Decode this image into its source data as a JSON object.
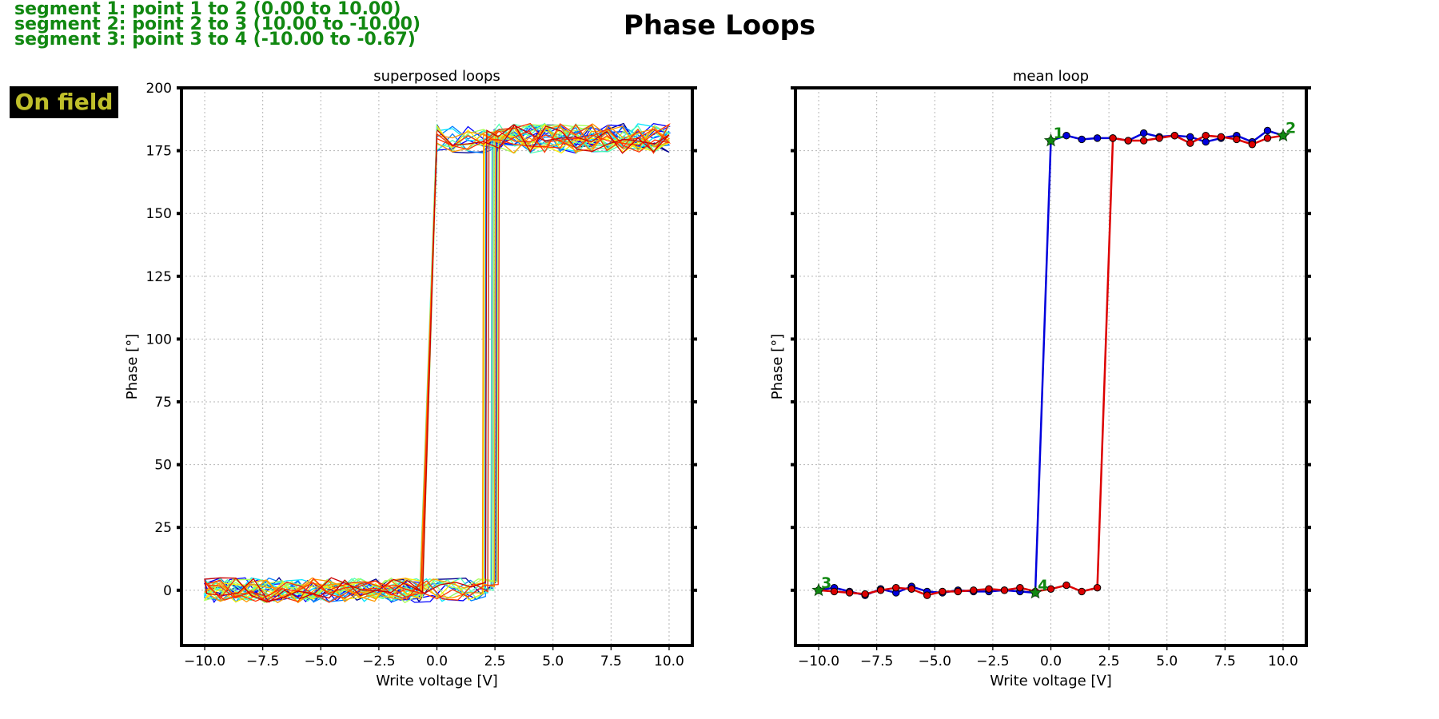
{
  "header": {
    "title": "Phase Loops",
    "segments": [
      "segment 1: point 1 to 2 (0.00 to 10.00)",
      "segment 2: point 2 to 3 (10.00 to -10.00)",
      "segment 3: point 3 to 4 (-10.00 to -0.67)"
    ],
    "badge": "On field"
  },
  "colors": {
    "segment_text": "#118811",
    "badge_bg": "#000000",
    "badge_text": "#bfbf2a",
    "mean_forward": "#0000dd",
    "mean_reverse": "#dd0000"
  },
  "chart_data": [
    {
      "type": "line",
      "title": "superposed loops",
      "xlabel": "Write voltage [V]",
      "ylabel": "Phase [°]",
      "xlim": [
        -11,
        11
      ],
      "ylim": [
        -22,
        200
      ],
      "xticks": [
        -10,
        -7.5,
        -5,
        -2.5,
        0,
        2.5,
        5,
        7.5,
        10
      ],
      "xtick_labels": [
        "−10.0",
        "−7.5",
        "−5.0",
        "−2.5",
        "0.0",
        "2.5",
        "5.0",
        "7.5",
        "10.0"
      ],
      "yticks": [
        0,
        25,
        50,
        75,
        100,
        125,
        150,
        175,
        200
      ],
      "ytick_labels": [
        "0",
        "25",
        "50",
        "75",
        "100",
        "125",
        "150",
        "175",
        "200"
      ],
      "grid": true,
      "note": "~16 superposed noisy hysteresis loops; each loop switches up near -0.6 V on the forward sweep and back down near 2.0 to 2.7 V",
      "loop_count": 16,
      "forward_switch_v": -0.67,
      "reverse_switch_v": 2.0,
      "low_level": 0,
      "high_level": 180,
      "colormap": [
        "#00008f",
        "#0000ff",
        "#0080ff",
        "#00e5ff",
        "#4dffb3",
        "#a6ff59",
        "#ffee00",
        "#ff9900",
        "#ff3300",
        "#cc0000"
      ]
    },
    {
      "type": "line",
      "title": "mean loop",
      "xlabel": "Write voltage [V]",
      "ylabel": "Phase [°]",
      "xlim": [
        -11,
        11
      ],
      "ylim": [
        -22,
        200
      ],
      "xticks": [
        -10,
        -7.5,
        -5,
        -2.5,
        0,
        2.5,
        5,
        7.5,
        10
      ],
      "xtick_labels": [
        "−10.0",
        "−7.5",
        "−5.0",
        "−2.5",
        "0.0",
        "2.5",
        "5.0",
        "7.5",
        "10.0"
      ],
      "yticks": [
        0,
        25,
        50,
        75,
        100,
        125,
        150,
        175,
        200
      ],
      "grid": true,
      "series": [
        {
          "color": "#0000dd",
          "x": [
            -10,
            -9.33,
            -8.67,
            -8.0,
            -7.33,
            -6.67,
            -6.0,
            -5.33,
            -4.67,
            -4.0,
            -3.33,
            -2.67,
            -2.0,
            -1.33,
            -0.67,
            0.0,
            0.67,
            1.33,
            2.0,
            2.67,
            3.33,
            4.0,
            4.67,
            5.33,
            6.0,
            6.67,
            7.33,
            8.0,
            8.67,
            9.33,
            10.0
          ],
          "y": [
            0,
            1,
            -0.5,
            -2,
            0.5,
            -1,
            1.5,
            -0.5,
            -1,
            0,
            -0.5,
            -0.5,
            0,
            -0.5,
            -1,
            179,
            181,
            179.5,
            180,
            180,
            179,
            182,
            180.5,
            181,
            180.5,
            178.5,
            180,
            181,
            178.5,
            183,
            181
          ]
        },
        {
          "color": "#dd0000",
          "x": [
            10.0,
            9.33,
            8.67,
            8.0,
            7.33,
            6.67,
            6.0,
            5.33,
            4.67,
            4.0,
            3.33,
            2.67,
            2.0,
            1.33,
            0.67,
            0.0,
            -0.67,
            -1.33,
            -2.0,
            -2.67,
            -3.33,
            -4.0,
            -4.67,
            -5.33,
            -6.0,
            -6.67,
            -7.33,
            -8.0,
            -8.67,
            -9.33,
            -10.0
          ],
          "y": [
            181,
            180,
            177.5,
            179.5,
            180.5,
            181,
            178,
            181,
            180,
            179,
            179,
            180,
            1,
            -0.5,
            2,
            0.5,
            -0.5,
            1,
            0,
            0.5,
            0,
            -0.5,
            -0.5,
            -2,
            0.5,
            1,
            0,
            -1.5,
            -1,
            -0.5,
            0
          ]
        }
      ],
      "markers": [
        {
          "label": "1",
          "x": 0.0,
          "y": 179
        },
        {
          "label": "2",
          "x": 10.0,
          "y": 181
        },
        {
          "label": "3",
          "x": -10.0,
          "y": 0
        },
        {
          "label": "4",
          "x": -0.67,
          "y": -1
        }
      ]
    }
  ]
}
